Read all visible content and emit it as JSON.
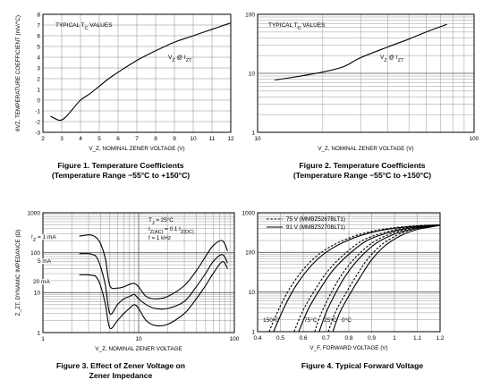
{
  "chart_data": [
    {
      "type": "line",
      "title": "",
      "xlabel": "V_Z, NOMINAL ZENER VOLTAGE (V)",
      "ylabel": "θVZ, TEMPERATURE COEFFICIENT (mV/°C)",
      "xlim": [
        2,
        12
      ],
      "ylim": [
        -3,
        8
      ],
      "x_ticks": [
        "2",
        "3",
        "4",
        "5",
        "6",
        "7",
        "8",
        "9",
        "10",
        "11",
        "12"
      ],
      "y_ticks": [
        "-3",
        "-2",
        "-1",
        "0",
        "1",
        "2",
        "3",
        "4",
        "5",
        "6",
        "7",
        "8"
      ],
      "grid": true,
      "annotations": [
        {
          "text": "TYPICAL T",
          "sub": "C",
          "tail": " VALUES"
        },
        {
          "text": "V",
          "sub": "Z",
          "tail": " @ I",
          "sub2": "ZT"
        }
      ],
      "series": [
        {
          "name": "",
          "x": [
            2.4,
            2.8,
            3.0,
            3.2,
            3.6,
            4.0,
            4.5,
            5.0,
            5.5,
            6.0,
            7.0,
            8.0,
            9.0,
            10.0,
            11.0,
            12.0
          ],
          "y": [
            -1.5,
            -1.85,
            -1.85,
            -1.6,
            -0.8,
            0.0,
            0.6,
            1.3,
            2.0,
            2.6,
            3.7,
            4.6,
            5.4,
            6.0,
            6.6,
            7.2
          ]
        }
      ],
      "caption": [
        "Figure 1. Temperature Coefficients",
        "(Temperature Range −55°C to +150°C)"
      ]
    },
    {
      "type": "line",
      "title": "",
      "xlabel": "V_Z, NOMINAL ZENER VOLTAGE (V)",
      "ylabel": "θVZ, TEMPERATURE COEFFICIENT (mV/°C)",
      "log_x": true,
      "log_y": true,
      "xlim": [
        10,
        100
      ],
      "ylim": [
        1,
        100
      ],
      "x_ticks": [
        "10",
        "100"
      ],
      "y_ticks": [
        "1",
        "10",
        "100"
      ],
      "grid": true,
      "annotations": [
        {
          "text": "TYPICAL T",
          "sub": "C",
          "tail": " VALUES"
        },
        {
          "text": "V",
          "sub": "Z",
          "tail": " @ I",
          "sub2": "ZT"
        }
      ],
      "series": [
        {
          "name": "",
          "x": [
            12,
            15,
            20,
            25,
            30,
            40,
            50,
            60,
            75
          ],
          "y": [
            7.7,
            8.7,
            10.5,
            13.0,
            18.5,
            28.0,
            38.0,
            50.0,
            68.0
          ]
        }
      ],
      "caption": [
        "Figure 2. Temperature Coefficients",
        "(Temperature Range −55°C to +150°C)"
      ]
    },
    {
      "type": "line",
      "title": "",
      "xlabel": "V_Z, NOMINAL ZENER VOLTAGE",
      "ylabel": "Z_ZT, DYNAMIC IMPEDANCE (Ω)",
      "log_x": true,
      "log_y": true,
      "xlim": [
        1,
        100
      ],
      "ylim": [
        1,
        1000
      ],
      "x_ticks": [
        "1",
        "10",
        "100"
      ],
      "y_ticks": [
        "1",
        "10",
        "100",
        "1000"
      ],
      "grid": true,
      "conditions": [
        "T",
        "J",
        " = 25°C",
        "I",
        "Z(AC)",
        " = 0.1 I",
        "Z(DC)",
        "f = 1 kHz"
      ],
      "series": [
        {
          "name": "I_Z = 1 mA",
          "label": "I",
          "label_sub": "Z",
          "label_tail": " = 1 mA",
          "x": [
            2.4,
            3.0,
            3.3,
            3.6,
            4.0,
            4.5,
            5.0,
            6.0,
            7.0,
            8.0,
            9.0,
            10.0,
            12,
            15,
            20,
            30,
            40,
            50,
            60,
            75,
            85
          ],
          "y": [
            260,
            280,
            270,
            240,
            170,
            70,
            15,
            13,
            14,
            16,
            17,
            14,
            8,
            7,
            8,
            15,
            35,
            80,
            150,
            200,
            110
          ]
        },
        {
          "name": "5 mA",
          "label": "",
          "label_sub": "",
          "label_tail": "5 mA",
          "x": [
            2.4,
            3.0,
            3.3,
            3.6,
            4.0,
            4.5,
            5.0,
            6.0,
            7.0,
            8.0,
            9.0,
            10.0,
            12,
            15,
            20,
            30,
            40,
            50,
            60,
            75,
            85
          ],
          "y": [
            95,
            95,
            90,
            80,
            45,
            15,
            3,
            5,
            7,
            8,
            9,
            7,
            5,
            4,
            4,
            6,
            14,
            30,
            60,
            90,
            55
          ]
        },
        {
          "name": "20 mA",
          "label": "",
          "label_sub": "",
          "label_tail": "20 mA",
          "x": [
            2.4,
            3.0,
            3.3,
            3.6,
            4.0,
            4.5,
            5.0,
            6.0,
            7.0,
            8.0,
            9.0,
            10.0,
            12,
            15,
            20,
            30,
            40,
            50,
            60,
            75,
            85
          ],
          "y": [
            28,
            28,
            27,
            25,
            15,
            5,
            1.3,
            2,
            3,
            4,
            5,
            4,
            2,
            1.5,
            1.6,
            3,
            7,
            15,
            30,
            60,
            40
          ]
        }
      ],
      "caption": [
        "Figure 3. Effect of Zener Voltage on",
        "Zener Impedance"
      ]
    },
    {
      "type": "line",
      "title": "",
      "xlabel": "V_F, FORWARD VOLTAGE (V)",
      "ylabel": "I_F, FORWARD CURRENT (mA)",
      "log_y": true,
      "xlim": [
        0.4,
        1.2
      ],
      "ylim": [
        1,
        1000
      ],
      "x_ticks": [
        "0.4",
        "0.5",
        "0.6",
        "0.7",
        "0.8",
        "0.9",
        "1",
        "1.1",
        "1.2"
      ],
      "y_ticks": [
        "1",
        "10",
        "100",
        "1000"
      ],
      "grid": true,
      "legend": [
        {
          "style": "dashed",
          "label": "75 V (MMBZ5267BLT1)"
        },
        {
          "style": "solid",
          "label": "91 V (MMBZ5270BLT1)"
        }
      ],
      "temp_labels": [
        "150°C",
        "75°C",
        "25°C",
        "0°C"
      ],
      "series": [
        {
          "name": "75 V (MMBZ5267BLT1)",
          "style": "dashed",
          "temp": "150°C",
          "x": [
            0.45,
            0.5,
            0.55,
            0.62,
            0.7,
            0.8,
            0.9,
            1.0,
            1.1,
            1.19
          ],
          "y": [
            1,
            4.5,
            15,
            50,
            120,
            230,
            340,
            420,
            470,
            490
          ]
        },
        {
          "name": "91 V (MMBZ5270BLT1)",
          "style": "solid",
          "temp": "150°C",
          "x": [
            0.47,
            0.52,
            0.57,
            0.64,
            0.72,
            0.82,
            0.92,
            1.02,
            1.12,
            1.2
          ],
          "y": [
            1,
            4.5,
            15,
            50,
            120,
            230,
            340,
            420,
            470,
            490
          ]
        },
        {
          "name": "75 V (MMBZ5267BLT1)",
          "style": "dashed",
          "temp": "75°C",
          "x": [
            0.56,
            0.6,
            0.65,
            0.71,
            0.78,
            0.86,
            0.95,
            1.04,
            1.12,
            1.19
          ],
          "y": [
            1,
            3.5,
            11,
            35,
            90,
            200,
            310,
            410,
            460,
            490
          ]
        },
        {
          "name": "91 V (MMBZ5270BLT1)",
          "style": "solid",
          "temp": "75°C",
          "x": [
            0.58,
            0.62,
            0.67,
            0.73,
            0.8,
            0.88,
            0.97,
            1.06,
            1.14,
            1.2
          ],
          "y": [
            1,
            3.5,
            11,
            35,
            90,
            200,
            310,
            410,
            460,
            490
          ]
        },
        {
          "name": "75 V (MMBZ5267BLT1)",
          "style": "dashed",
          "temp": "25°C",
          "x": [
            0.65,
            0.68,
            0.72,
            0.77,
            0.83,
            0.9,
            0.98,
            1.06,
            1.13,
            1.19
          ],
          "y": [
            1,
            3,
            9,
            28,
            75,
            170,
            290,
            390,
            450,
            490
          ]
        },
        {
          "name": "91 V (MMBZ5270BLT1)",
          "style": "solid",
          "temp": "25°C",
          "x": [
            0.67,
            0.7,
            0.74,
            0.79,
            0.85,
            0.92,
            1.0,
            1.08,
            1.15,
            1.2
          ],
          "y": [
            1,
            3,
            9,
            28,
            75,
            170,
            290,
            390,
            450,
            490
          ]
        },
        {
          "name": "75 V (MMBZ5267BLT1)",
          "style": "dashed",
          "temp": "0°C",
          "x": [
            0.71,
            0.74,
            0.78,
            0.83,
            0.88,
            0.94,
            1.01,
            1.08,
            1.14,
            1.19
          ],
          "y": [
            1,
            3,
            8,
            24,
            65,
            150,
            270,
            380,
            440,
            480
          ]
        },
        {
          "name": "91 V (MMBZ5270BLT1)",
          "style": "solid",
          "temp": "0°C",
          "x": [
            0.73,
            0.76,
            0.8,
            0.85,
            0.9,
            0.96,
            1.03,
            1.1,
            1.16,
            1.2
          ],
          "y": [
            1,
            3,
            8,
            24,
            65,
            150,
            270,
            380,
            440,
            480
          ]
        }
      ],
      "caption": [
        "Figure 4. Typical Forward Voltage"
      ]
    }
  ]
}
